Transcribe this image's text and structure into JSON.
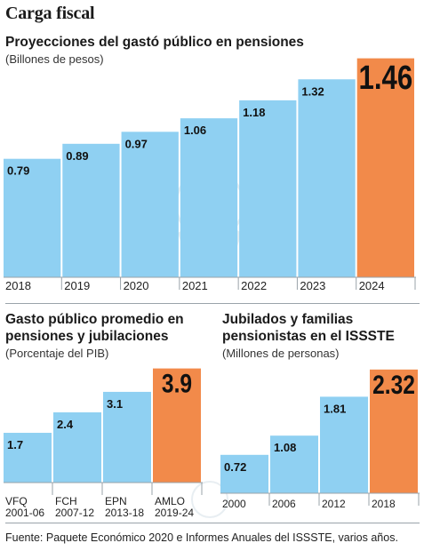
{
  "title": "Carga fiscal",
  "source": "Fuente: Paquete Económico 2020 e Informes Anuales del ISSSTE, varios años.",
  "colors": {
    "bar": "#8fd0f2",
    "highlight": "#f28a4a",
    "rule": "#9aa3aa"
  },
  "chart_data": [
    {
      "type": "bar",
      "title": "Proyecciones del gastó público en pensiones",
      "subtitle": "(Billones de pesos)",
      "categories": [
        "2018",
        "2019",
        "2020",
        "2021",
        "2022",
        "2023",
        "2024"
      ],
      "values": [
        0.79,
        0.89,
        0.97,
        1.06,
        1.18,
        1.32,
        1.46
      ],
      "labels": [
        "0.79",
        "0.89",
        "0.97",
        "1.06",
        "1.18",
        "1.32",
        "1.46"
      ],
      "highlight_index": 6,
      "ylim": [
        0,
        1.6
      ]
    },
    {
      "type": "bar",
      "title": "Gasto público promedio en pensiones y jubilaciones",
      "title_lines": [
        "Gasto público promedio en",
        "pensiones y jubilaciones"
      ],
      "subtitle": "(Porcentaje del PIB)",
      "categories": [
        "VFQ 2001-06",
        "FCH 2007-12",
        "EPN 2013-18",
        "AMLO 2019-24"
      ],
      "category_lines": [
        [
          "VFQ",
          "2001-06"
        ],
        [
          "FCH",
          "2007-12"
        ],
        [
          "EPN",
          "2013-18"
        ],
        [
          "AMLO",
          "2019-24"
        ]
      ],
      "values": [
        1.7,
        2.4,
        3.1,
        3.9
      ],
      "labels": [
        "1.7",
        "2.4",
        "3.1",
        "3.9"
      ],
      "highlight_index": 3,
      "ylim": [
        0,
        4.1
      ]
    },
    {
      "type": "bar",
      "title": "Jubilados y familias pensionistas en el ISSSTE",
      "title_lines": [
        "Jubilados y familias",
        "pensionistas en el ISSSTE"
      ],
      "subtitle": "(Millones de personas)",
      "categories": [
        "2000",
        "2006",
        "2012",
        "2018"
      ],
      "values": [
        0.72,
        1.08,
        1.81,
        2.32
      ],
      "labels": [
        "0.72",
        "1.08",
        "1.81",
        "2.32"
      ],
      "highlight_index": 3,
      "ylim": [
        0,
        2.45
      ]
    }
  ]
}
